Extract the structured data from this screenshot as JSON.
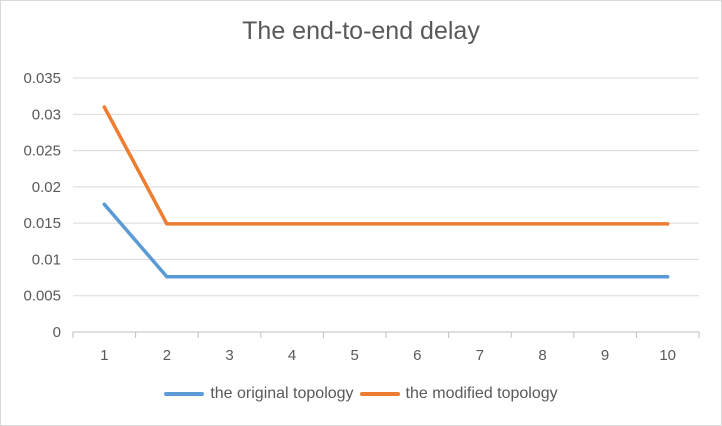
{
  "chart_data": {
    "type": "line",
    "title": "The end-to-end delay",
    "xlabel": "",
    "ylabel": "",
    "x": [
      1,
      2,
      3,
      4,
      5,
      6,
      7,
      8,
      9,
      10
    ],
    "ylim": [
      0,
      0.035
    ],
    "yticks": [
      "0",
      "0.005",
      "0.01",
      "0.015",
      "0.02",
      "0.025",
      "0.03",
      "0.035"
    ],
    "grid": true,
    "legend_position": "bottom",
    "series": [
      {
        "name": "the original topology",
        "color": "#5b9bd5",
        "values": [
          0.0176,
          0.0076,
          0.0076,
          0.0076,
          0.0076,
          0.0076,
          0.0076,
          0.0076,
          0.0076,
          0.0076
        ]
      },
      {
        "name": "the modified topology",
        "color": "#ed7d31",
        "values": [
          0.031,
          0.0149,
          0.0149,
          0.0149,
          0.0149,
          0.0149,
          0.0149,
          0.0149,
          0.0149,
          0.0149
        ]
      }
    ]
  }
}
